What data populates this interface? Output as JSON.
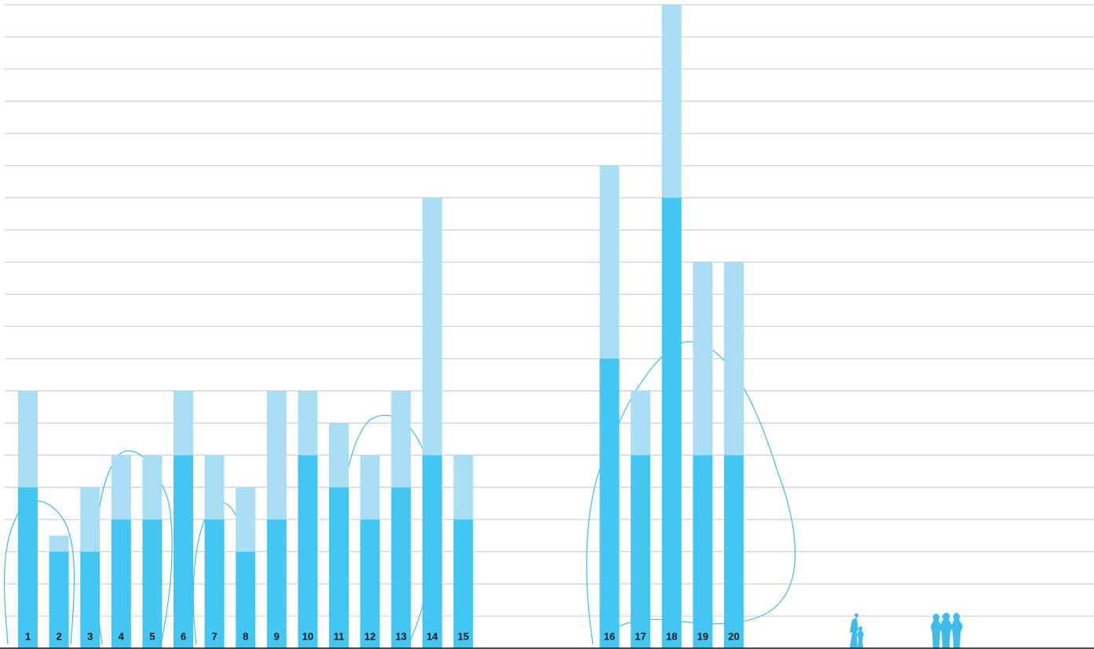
{
  "chart_data": {
    "type": "stacked-bar",
    "categories": [
      "1",
      "2",
      "3",
      "4",
      "5",
      "6",
      "7",
      "8",
      "9",
      "10",
      "11",
      "12",
      "13",
      "14",
      "15",
      "16",
      "17",
      "18",
      "19",
      "20"
    ],
    "series": [
      {
        "color": "#43c6f2",
        "values": [
          5,
          3,
          3,
          4,
          4,
          6,
          4,
          3,
          4,
          6,
          5,
          4,
          5,
          6,
          4,
          9,
          6,
          14,
          6,
          6
        ]
      },
      {
        "color": "#a9def5",
        "values": [
          3,
          0.5,
          2,
          2,
          2,
          2,
          2,
          2,
          4,
          2,
          2,
          2,
          3,
          8,
          2,
          6,
          2,
          6,
          6,
          6
        ]
      }
    ],
    "ylim": [
      0,
      20
    ],
    "yticks": [
      0,
      1,
      2,
      3,
      4,
      5,
      6,
      7,
      8,
      9,
      10,
      11,
      12,
      13,
      14,
      15,
      16,
      17,
      18,
      19,
      20
    ],
    "grid": true
  }
}
